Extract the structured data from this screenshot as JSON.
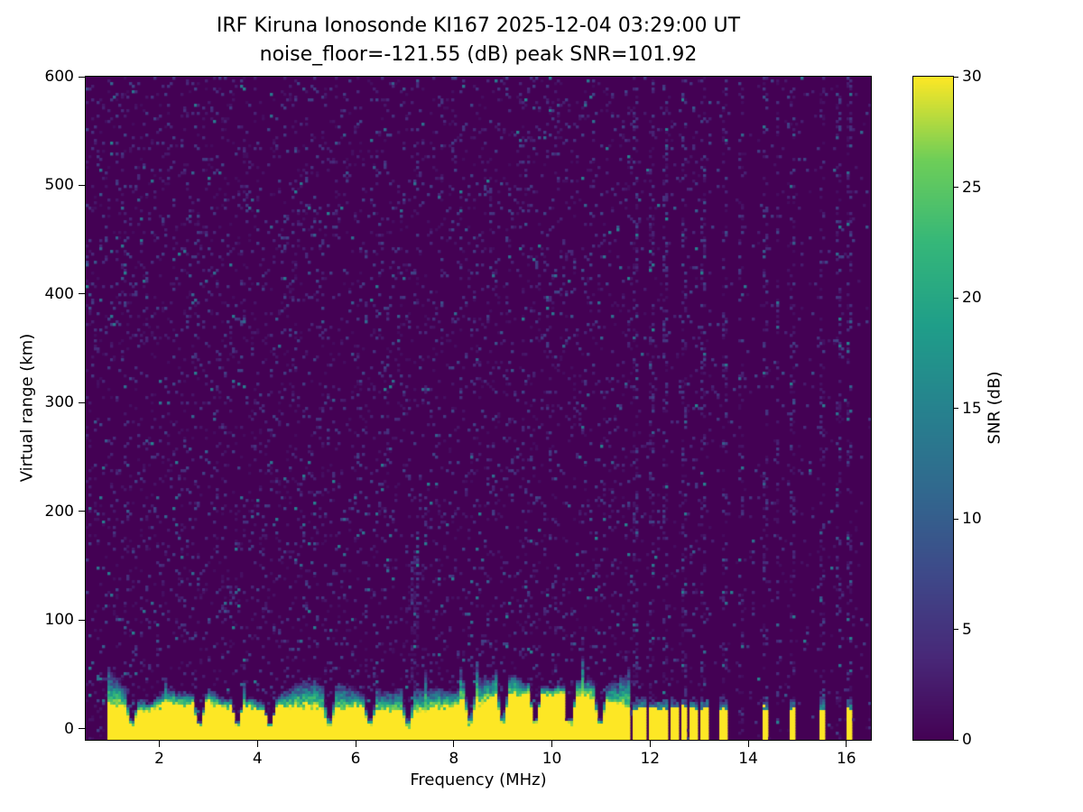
{
  "chart_data": {
    "type": "heatmap",
    "title": "IRF Kiruna Ionosonde KI167 2025-12-04 03:29:00  UT",
    "subtitle": "noise_floor=-121.55 (dB) peak SNR=101.92",
    "station": "KI167",
    "timestamp_ut": "2025-12-04 03:29:00",
    "noise_floor_db": -121.55,
    "peak_snr_db": 101.92,
    "xlabel": "Frequency (MHz)",
    "ylabel": "Virtual range (km)",
    "colorbar_label": "SNR (dB)",
    "xlim": [
      0.5,
      16.5
    ],
    "ylim": [
      -10,
      600
    ],
    "clim": [
      0,
      30
    ],
    "x_ticks": [
      2,
      4,
      6,
      8,
      10,
      12,
      14,
      16
    ],
    "y_ticks": [
      0,
      100,
      200,
      300,
      400,
      500,
      600
    ],
    "colorbar_ticks": [
      0,
      5,
      10,
      15,
      20,
      25,
      30
    ],
    "colormap": "viridis",
    "colormap_anchors": [
      "#440154",
      "#482878",
      "#3e4989",
      "#31688e",
      "#26828e",
      "#1f9e89",
      "#35b779",
      "#6ece58",
      "#fde725"
    ],
    "ground_echo_band": {
      "f_start_mhz": 0.95,
      "f_end_mhz": 11.6,
      "yellow_top_km_mean": 26,
      "mixed_top_km_mean": 42,
      "snr_db": 30,
      "notch_freqs_mhz": [
        1.45,
        2.8,
        3.6,
        4.25,
        5.45,
        6.3,
        7.05,
        8.35,
        9.0,
        9.65,
        10.35,
        11.0
      ]
    },
    "discrete_stripes_mhz": [
      11.72,
      11.87,
      12.02,
      12.17,
      12.32,
      12.5,
      12.68,
      12.88,
      13.1,
      13.5,
      14.35,
      14.9,
      15.5,
      16.05
    ],
    "noise_columns_mhz": [
      11.72,
      12.02,
      12.32,
      12.68,
      13.1,
      13.5,
      13.85,
      14.35,
      14.6,
      14.9,
      15.5,
      15.85,
      16.05
    ],
    "interference_column": {
      "f_mhz": 7.2,
      "max_range_km": 165
    },
    "echo_patch": {
      "f_mhz": 3.4,
      "range_km": 125
    },
    "background_snr_db": 0,
    "noise_speckle_max_db": 15
  }
}
